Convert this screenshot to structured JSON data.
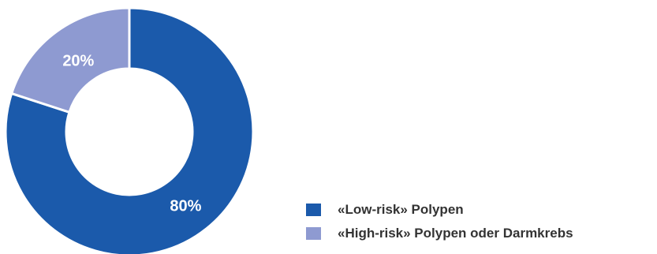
{
  "chart_data": {
    "type": "pie",
    "variant": "donut",
    "title": "",
    "categories": [
      "«Low-risk» Polypen",
      "«High-risk» Polypen oder Darmkrebs"
    ],
    "values": [
      80,
      20
    ],
    "value_labels": [
      "80%",
      "20%"
    ],
    "colors": [
      "#1b5aab",
      "#8e9ad1"
    ],
    "legend_position": "bottom-right",
    "start_angle_deg": 0,
    "direction": "clockwise"
  },
  "legend": {
    "items": [
      {
        "label": "«Low-risk» Polypen",
        "color": "#1b5aab"
      },
      {
        "label": "«High-risk» Polypen oder Darmkrebs",
        "color": "#8e9ad1"
      }
    ]
  }
}
